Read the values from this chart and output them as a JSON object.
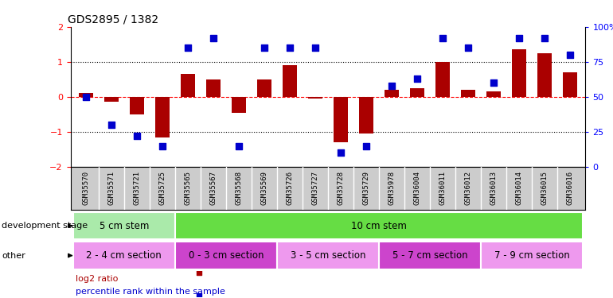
{
  "title": "GDS2895 / 1382",
  "samples": [
    "GSM35570",
    "GSM35571",
    "GSM35721",
    "GSM35725",
    "GSM35565",
    "GSM35567",
    "GSM35568",
    "GSM35569",
    "GSM35726",
    "GSM35727",
    "GSM35728",
    "GSM35729",
    "GSM35978",
    "GSM36004",
    "GSM36011",
    "GSM36012",
    "GSM36013",
    "GSM36014",
    "GSM36015",
    "GSM36016"
  ],
  "log2_ratio": [
    0.1,
    -0.15,
    -0.5,
    -1.15,
    0.65,
    0.5,
    -0.45,
    0.5,
    0.9,
    -0.05,
    -1.3,
    -1.05,
    0.2,
    0.25,
    1.0,
    0.2,
    0.15,
    1.35,
    1.25,
    0.7
  ],
  "percentile": [
    50,
    30,
    22,
    15,
    85,
    92,
    15,
    85,
    85,
    85,
    10,
    15,
    58,
    63,
    92,
    85,
    60,
    92,
    92,
    80
  ],
  "bar_color": "#aa0000",
  "dot_color": "#0000cc",
  "ylim": [
    -2,
    2
  ],
  "y2lim": [
    0,
    100
  ],
  "yticks": [
    -2,
    -1,
    0,
    1,
    2
  ],
  "y2ticks": [
    0,
    25,
    50,
    75,
    100
  ],
  "y2ticklabels": [
    "0",
    "25",
    "50",
    "75",
    "100%"
  ],
  "dev_stage_groups": [
    {
      "label": "5 cm stem",
      "start": 0,
      "end": 3,
      "color": "#aaeaaa"
    },
    {
      "label": "10 cm stem",
      "start": 4,
      "end": 19,
      "color": "#66dd44"
    }
  ],
  "other_groups": [
    {
      "label": "2 - 4 cm section",
      "start": 0,
      "end": 3,
      "color": "#ee99ee"
    },
    {
      "label": "0 - 3 cm section",
      "start": 4,
      "end": 7,
      "color": "#cc44cc"
    },
    {
      "label": "3 - 5 cm section",
      "start": 8,
      "end": 11,
      "color": "#ee99ee"
    },
    {
      "label": "5 - 7 cm section",
      "start": 12,
      "end": 15,
      "color": "#cc44cc"
    },
    {
      "label": "7 - 9 cm section",
      "start": 16,
      "end": 19,
      "color": "#ee99ee"
    }
  ],
  "dev_stage_label": "development stage",
  "other_label": "other",
  "legend_items": [
    {
      "color": "#aa0000",
      "label": "log2 ratio"
    },
    {
      "color": "#0000cc",
      "label": "percentile rank within the sample"
    }
  ],
  "bar_width": 0.55,
  "dot_size": 30,
  "xlabel_fontsize": 6.5,
  "title_fontsize": 10,
  "group_label_fontsize": 8.5,
  "xtick_bg_color": "#cccccc",
  "background_color": "#ffffff"
}
